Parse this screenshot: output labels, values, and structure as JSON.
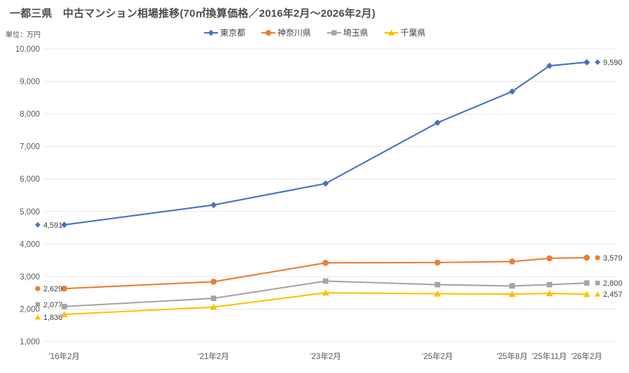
{
  "header": {
    "title": "一都三県　中古マンション相場推移(70㎡換算価格／2016年2月～2026年2月)"
  },
  "unit_label": "単位：万円",
  "chart_data": {
    "type": "line",
    "title": "一都三県　中古マンション相場推移(70㎡換算価格／2016年2月～2026年2月)",
    "ylabel": "単位：万円",
    "xlabel": "",
    "categories": [
      "'16年2月",
      "'21年2月",
      "'23年2月",
      "'25年2月",
      "'25年8月",
      "'25年11月",
      "'26年2月"
    ],
    "x_slots": [
      0,
      4,
      7,
      10,
      12,
      13,
      14
    ],
    "ylim": [
      1000,
      10000
    ],
    "ytick_step": 1000,
    "ytick_labels": [
      "1,000",
      "2,000",
      "3,000",
      "4,000",
      "5,000",
      "6,000",
      "7,000",
      "8,000",
      "9,000",
      "10,000"
    ],
    "grid": true,
    "gridline_color": "#e6e6e6",
    "axis_text_color": "#595959",
    "data_label_color": "#404040",
    "legend_position": "top",
    "value_labels_shown": "first_and_last_points_only",
    "series": [
      {
        "name": "東京都",
        "slug": "tokyo",
        "color": "#4472C4",
        "marker": "diamond",
        "values": [
          4591,
          5200,
          5860,
          7730,
          8690,
          9480,
          9590
        ],
        "first_label": "4,591",
        "last_label": "9,590"
      },
      {
        "name": "神奈川県",
        "slug": "kanagawa",
        "color": "#ED7D31",
        "marker": "circle",
        "values": [
          2629,
          2840,
          3420,
          3430,
          3460,
          3560,
          3579
        ],
        "first_label": "2,629",
        "last_label": "3,579"
      },
      {
        "name": "埼玉県",
        "slug": "saitama",
        "color": "#A5A5A5",
        "marker": "square",
        "values": [
          2077,
          2330,
          2860,
          2750,
          2710,
          2750,
          2800
        ],
        "first_label": "2,077",
        "last_label": "2,800"
      },
      {
        "name": "千葉県",
        "slug": "chiba",
        "color": "#FFC000",
        "marker": "triangle",
        "values": [
          1836,
          2060,
          2500,
          2470,
          2460,
          2480,
          2457
        ],
        "first_label": "1,836",
        "last_label": "2,457"
      }
    ]
  }
}
